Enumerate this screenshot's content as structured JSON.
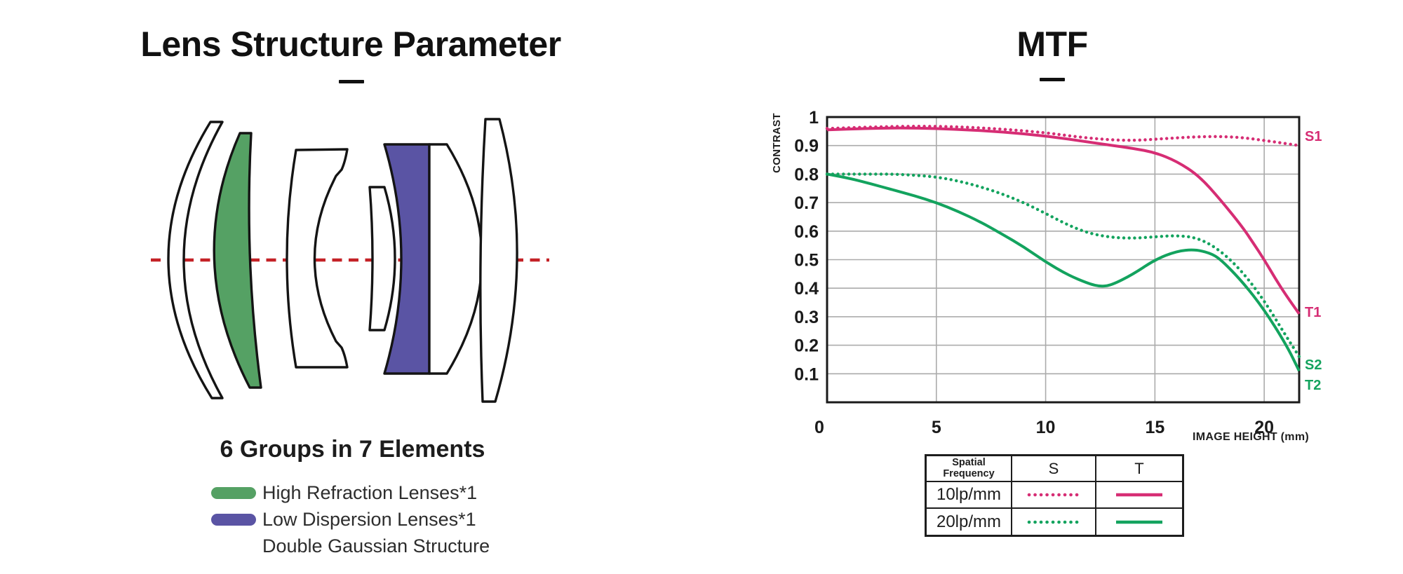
{
  "left_panel": {
    "title": "Lens Structure Parameter",
    "structure_heading": "6 Groups in 7 Elements",
    "legend": [
      {
        "label": "High Refraction Lenses*1",
        "swatch_color": "#55a164"
      },
      {
        "label": "Low Dispersion Lenses*1",
        "swatch_color": "#5a54a4"
      },
      {
        "label": "Double Gaussian Structure",
        "swatch_color": ""
      }
    ],
    "diagram": {
      "element_count": 7,
      "optical_axis_color": "#c42126",
      "high_refraction_color": "#55a164",
      "low_dispersion_color": "#5a54a4"
    }
  },
  "right_panel": {
    "title": "MTF",
    "legend_table": {
      "header_col1": "Spatial Frequency",
      "header_s": "S",
      "header_t": "T",
      "rows": [
        {
          "frequency": "10lp/mm",
          "color": "#d62d74"
        },
        {
          "frequency": "20lp/mm",
          "color": "#13a35e"
        }
      ]
    }
  },
  "chart_data": {
    "type": "line",
    "title": "MTF",
    "xlabel": "IMAGE HEIGHT  (mm)",
    "ylabel": "CONTRAST",
    "xlim": [
      0,
      21.6
    ],
    "ylim": [
      0,
      1
    ],
    "x_ticks": [
      0,
      5,
      10,
      15,
      20
    ],
    "y_ticks": [
      0,
      0.1,
      0.2,
      0.3,
      0.4,
      0.5,
      0.6,
      0.7,
      0.8,
      0.9,
      1
    ],
    "grid": true,
    "grid_color": "#ababab",
    "series": [
      {
        "name": "S1",
        "legend": "10lp/mm S (sagittal)",
        "style": "dotted",
        "color": "#d62d74",
        "points": [
          [
            0,
            0.96
          ],
          [
            2,
            0.965
          ],
          [
            4,
            0.968
          ],
          [
            6,
            0.966
          ],
          [
            8,
            0.958
          ],
          [
            10,
            0.945
          ],
          [
            11,
            0.935
          ],
          [
            12,
            0.926
          ],
          [
            13,
            0.92
          ],
          [
            14,
            0.918
          ],
          [
            15,
            0.922
          ],
          [
            16,
            0.927
          ],
          [
            17,
            0.931
          ],
          [
            18,
            0.932
          ],
          [
            19,
            0.928
          ],
          [
            20,
            0.918
          ],
          [
            21,
            0.907
          ],
          [
            21.6,
            0.9
          ]
        ]
      },
      {
        "name": "T1",
        "legend": "10lp/mm T (tangential)",
        "style": "solid",
        "color": "#d62d74",
        "points": [
          [
            0,
            0.955
          ],
          [
            2,
            0.961
          ],
          [
            4,
            0.962
          ],
          [
            6,
            0.957
          ],
          [
            8,
            0.948
          ],
          [
            10,
            0.934
          ],
          [
            12,
            0.912
          ],
          [
            13,
            0.901
          ],
          [
            14,
            0.89
          ],
          [
            15,
            0.876
          ],
          [
            16,
            0.845
          ],
          [
            17,
            0.795
          ],
          [
            18,
            0.71
          ],
          [
            19,
            0.615
          ],
          [
            19.5,
            0.558
          ],
          [
            20,
            0.5
          ],
          [
            20.5,
            0.435
          ],
          [
            21,
            0.375
          ],
          [
            21.6,
            0.31
          ]
        ]
      },
      {
        "name": "S2",
        "legend": "20lp/mm S (sagittal)",
        "style": "dotted",
        "color": "#13a35e",
        "points": [
          [
            0,
            0.8
          ],
          [
            1,
            0.8
          ],
          [
            2,
            0.8
          ],
          [
            3,
            0.8
          ],
          [
            4,
            0.796
          ],
          [
            5,
            0.79
          ],
          [
            6,
            0.776
          ],
          [
            7,
            0.756
          ],
          [
            8,
            0.731
          ],
          [
            9,
            0.7
          ],
          [
            10,
            0.662
          ],
          [
            11,
            0.622
          ],
          [
            12,
            0.592
          ],
          [
            13,
            0.578
          ],
          [
            14,
            0.575
          ],
          [
            15,
            0.58
          ],
          [
            16,
            0.585
          ],
          [
            17,
            0.576
          ],
          [
            18,
            0.532
          ],
          [
            19,
            0.458
          ],
          [
            20,
            0.357
          ],
          [
            21,
            0.232
          ],
          [
            21.6,
            0.16
          ]
        ]
      },
      {
        "name": "T2",
        "legend": "20lp/mm T (tangential)",
        "style": "solid",
        "color": "#13a35e",
        "points": [
          [
            0,
            0.8
          ],
          [
            1,
            0.786
          ],
          [
            2,
            0.766
          ],
          [
            3,
            0.745
          ],
          [
            4,
            0.724
          ],
          [
            5,
            0.7
          ],
          [
            6,
            0.669
          ],
          [
            7,
            0.633
          ],
          [
            8,
            0.59
          ],
          [
            9,
            0.545
          ],
          [
            10,
            0.492
          ],
          [
            11,
            0.447
          ],
          [
            12,
            0.415
          ],
          [
            12.5,
            0.406
          ],
          [
            13,
            0.41
          ],
          [
            14,
            0.449
          ],
          [
            15,
            0.5
          ],
          [
            16,
            0.53
          ],
          [
            16.8,
            0.536
          ],
          [
            17.5,
            0.524
          ],
          [
            18,
            0.502
          ],
          [
            19,
            0.423
          ],
          [
            20,
            0.325
          ],
          [
            21,
            0.203
          ],
          [
            21.6,
            0.11
          ]
        ]
      }
    ],
    "curve_labels": [
      {
        "text": "S1",
        "color": "#d62d74"
      },
      {
        "text": "T1",
        "color": "#d62d74"
      },
      {
        "text": "S2",
        "color": "#13a35e"
      },
      {
        "text": "T2",
        "color": "#13a35e"
      }
    ],
    "legend_position": "bottom-table"
  }
}
